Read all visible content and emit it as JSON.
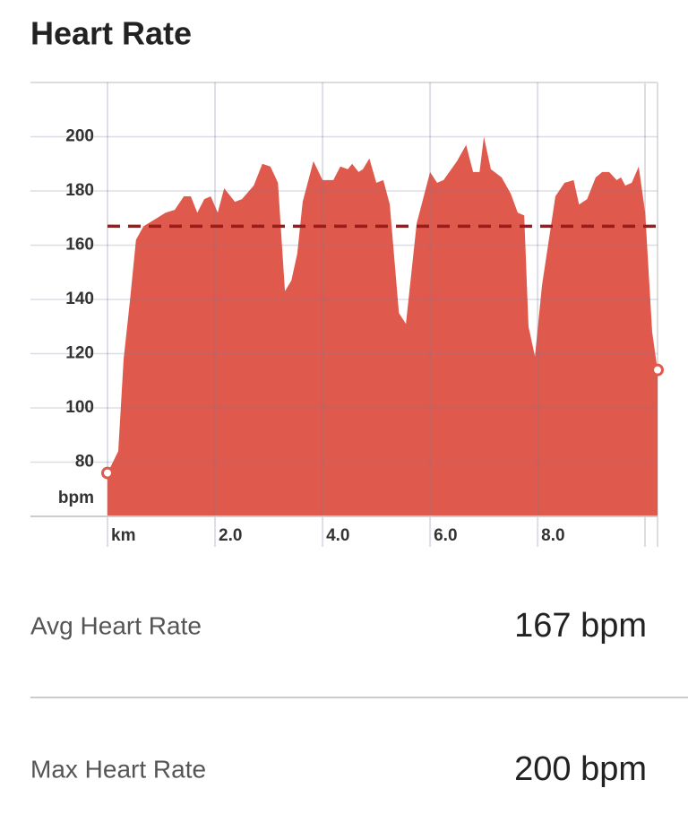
{
  "title": "Heart Rate",
  "chart_data": {
    "type": "area",
    "color": "#df5a4d",
    "average_color": "#9b1c1c",
    "x": [
      0,
      0.2,
      0.3,
      0.42,
      0.53,
      0.67,
      0.92,
      1.08,
      1.25,
      1.42,
      1.55,
      1.67,
      1.8,
      1.92,
      2.05,
      2.17,
      2.37,
      2.5,
      2.72,
      2.88,
      3.03,
      3.17,
      3.3,
      3.42,
      3.53,
      3.63,
      3.83,
      4.0,
      4.2,
      4.33,
      4.47,
      4.55,
      4.67,
      4.75,
      4.87,
      5.0,
      5.13,
      5.25,
      5.42,
      5.55,
      5.75,
      6.0,
      6.13,
      6.25,
      6.5,
      6.67,
      6.8,
      6.92,
      7.0,
      7.13,
      7.33,
      7.5,
      7.63,
      7.75,
      7.83,
      7.95,
      8.08,
      8.33,
      8.5,
      8.67,
      8.77,
      8.92,
      9.08,
      9.2,
      9.33,
      9.47,
      9.55,
      9.63,
      9.75,
      9.88,
      10.0,
      10.13,
      10.23
    ],
    "values": [
      76,
      84,
      118,
      140,
      162,
      167,
      170,
      172,
      173,
      178,
      178,
      172,
      177,
      178,
      172,
      181,
      176,
      177,
      182,
      190,
      189,
      183,
      143,
      147,
      157,
      176,
      191,
      184,
      184,
      189,
      188,
      190,
      187,
      188,
      192,
      183,
      184,
      175,
      135,
      131,
      168,
      187,
      183,
      184,
      191,
      197,
      187,
      187,
      200,
      188,
      185,
      179,
      172,
      171,
      130,
      119,
      145,
      178,
      183,
      184,
      175,
      177,
      185,
      187,
      187,
      184,
      185,
      182,
      183,
      189,
      172,
      128,
      114
    ],
    "average": 167,
    "xlim": [
      0,
      10.23
    ],
    "xticks": [
      {
        "value": 0,
        "label": "km"
      },
      {
        "value": 2,
        "label": "2.0"
      },
      {
        "value": 4,
        "label": "4.0"
      },
      {
        "value": 6,
        "label": "6.0"
      },
      {
        "value": 8,
        "label": "8.0"
      }
    ],
    "ylim": [
      60,
      220
    ],
    "yticks": [
      80,
      100,
      120,
      140,
      160,
      180,
      200
    ],
    "y_unit": "bpm",
    "grid": true
  },
  "stats": [
    {
      "label": "Avg Heart Rate",
      "value": "167 bpm"
    },
    {
      "label": "Max Heart Rate",
      "value": "200 bpm"
    }
  ]
}
